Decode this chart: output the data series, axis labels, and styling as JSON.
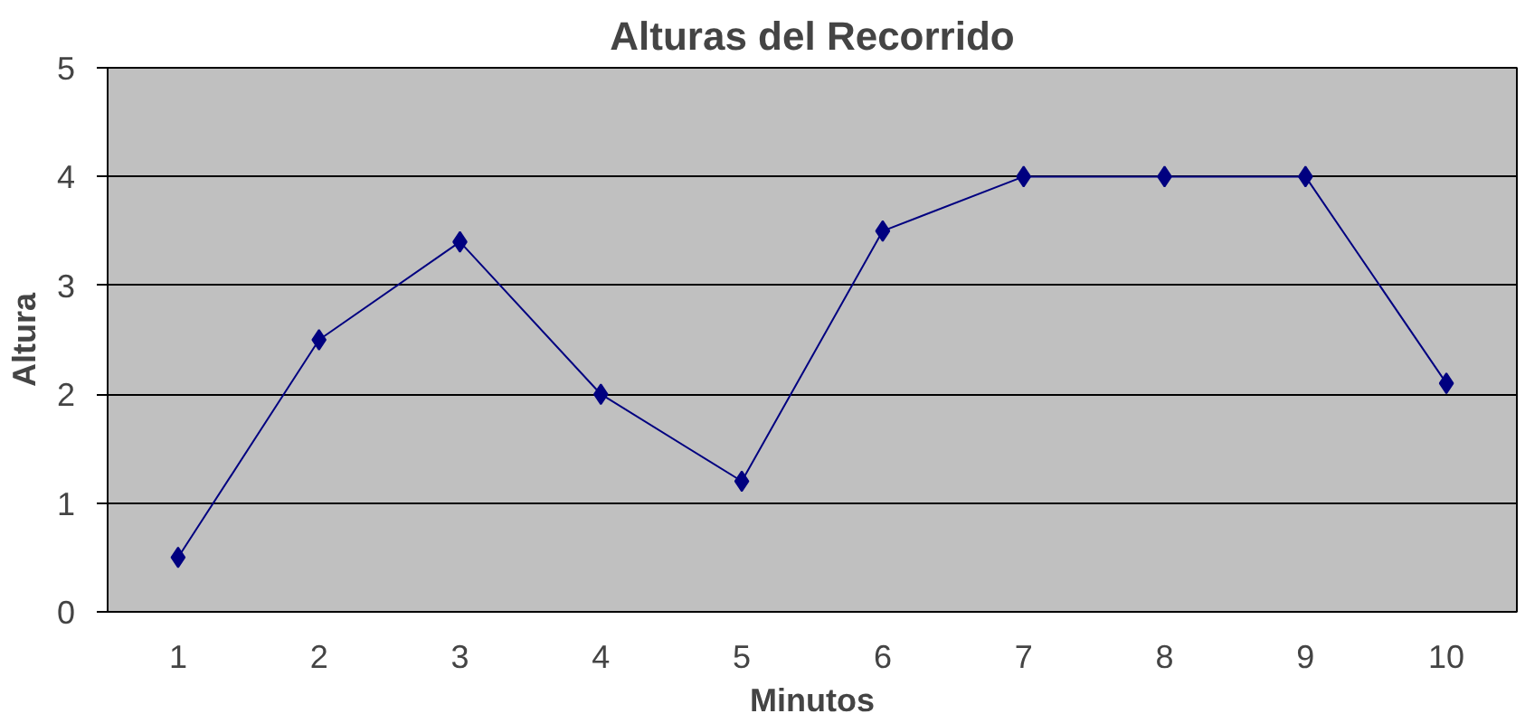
{
  "chart_data": {
    "type": "line",
    "title": "Alturas del Recorrido",
    "xlabel": "Minutos",
    "ylabel": "Altura",
    "categories": [
      "1",
      "2",
      "3",
      "4",
      "5",
      "6",
      "7",
      "8",
      "9",
      "10"
    ],
    "series": [
      {
        "color": "#000080",
        "values": [
          0.5,
          2.5,
          3.4,
          2,
          1.2,
          3.5,
          4,
          4,
          4,
          2.1
        ]
      }
    ],
    "ylim": [
      0,
      5
    ],
    "yticks": [
      0,
      1,
      2,
      3,
      4,
      5
    ],
    "grid": "y",
    "marker": "diamond",
    "line_style": "solid"
  }
}
